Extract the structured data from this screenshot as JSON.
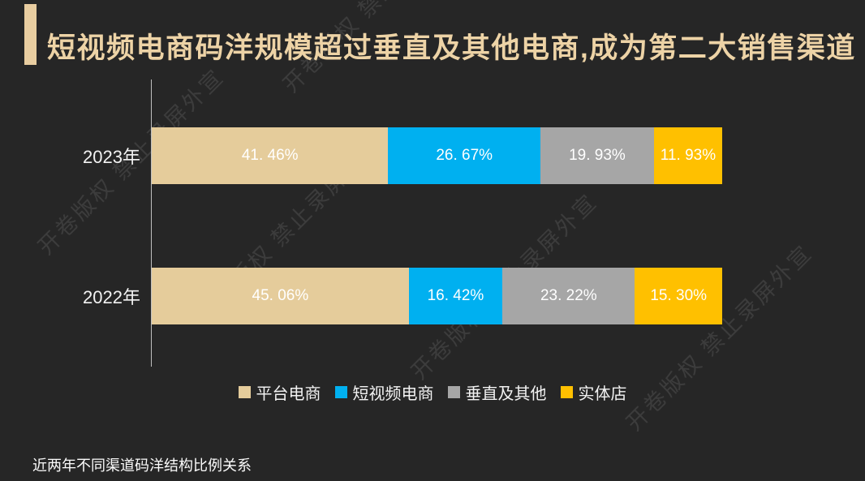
{
  "page": {
    "background": "#262626"
  },
  "header": {
    "title": "短视频电商码洋规模超过垂直及其他电商,成为第二大销售渠道",
    "title_color": "#edd3a6",
    "accent_color": "#e8cda0"
  },
  "watermark": {
    "text": "开卷版权 禁止录屏外宣"
  },
  "footer": {
    "caption": "近两年不同渠道码洋结构比例关系"
  },
  "chart_data": {
    "type": "bar",
    "stacked": true,
    "orientation": "horizontal",
    "title": "",
    "categories": [
      "2023年",
      "2022年"
    ],
    "series": [
      {
        "name": "平台电商",
        "color": "#e5cc9b",
        "values": [
          41.46,
          45.06
        ],
        "labels": [
          "41. 46%",
          "45. 06%"
        ]
      },
      {
        "name": "短视频电商",
        "color": "#00b0f0",
        "values": [
          26.67,
          16.42
        ],
        "labels": [
          "26. 67%",
          "16. 42%"
        ]
      },
      {
        "name": "垂直及其他",
        "color": "#a6a6a6",
        "values": [
          19.93,
          23.22
        ],
        "labels": [
          "19. 93%",
          "23. 22%"
        ]
      },
      {
        "name": "实体店",
        "color": "#ffc000",
        "values": [
          11.93,
          15.3
        ],
        "labels": [
          "11. 93%",
          "15. 30%"
        ]
      }
    ],
    "xlim": [
      0,
      100
    ],
    "grid": false,
    "legend_position": "bottom",
    "value_label_color": "#ffffff",
    "category_label_color": "#f2f2f2",
    "axis_line_color": "#bfbfbf"
  }
}
